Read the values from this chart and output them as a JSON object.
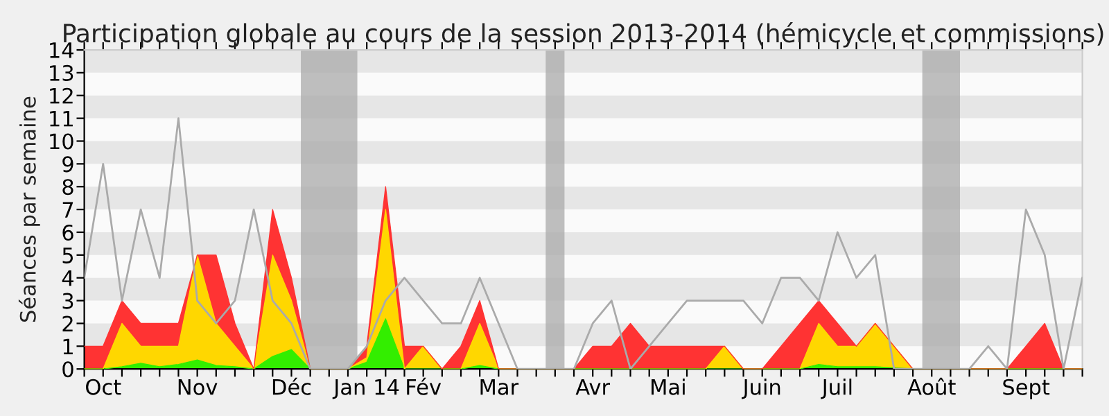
{
  "chart_data": {
    "type": "area",
    "stacked": true,
    "title": "Participation globale au cours de la session 2013-2014 (hémicycle et commissions)",
    "ylabel": "Séances par semaine",
    "x": [
      "2013-09-30",
      "2013-10-07",
      "2013-10-14",
      "2013-10-21",
      "2013-10-28",
      "2013-11-04",
      "2013-11-11",
      "2013-11-18",
      "2013-11-25",
      "2013-12-02",
      "2013-12-09",
      "2013-12-16",
      "2013-12-23",
      "2013-12-30",
      "2014-01-06",
      "2014-01-13",
      "2014-01-20",
      "2014-01-27",
      "2014-02-03",
      "2014-02-10",
      "2014-02-17",
      "2014-02-24",
      "2014-03-03",
      "2014-03-10",
      "2014-03-17",
      "2014-03-24",
      "2014-03-31",
      "2014-04-07",
      "2014-04-14",
      "2014-04-21",
      "2014-04-28",
      "2014-05-05",
      "2014-05-12",
      "2014-05-19",
      "2014-05-26",
      "2014-06-02",
      "2014-06-09",
      "2014-06-16",
      "2014-06-23",
      "2014-06-30",
      "2014-07-07",
      "2014-07-14",
      "2014-07-21",
      "2014-07-28",
      "2014-08-04",
      "2014-08-11",
      "2014-08-18",
      "2014-08-25",
      "2014-09-01",
      "2014-09-08",
      "2014-09-15",
      "2014-09-22",
      "2014-09-29",
      "2014-10-06"
    ],
    "series": [
      {
        "color": "#33ee00",
        "values": [
          0,
          0,
          0.1,
          0.25,
          0.1,
          0.2,
          0.4,
          0.15,
          0.1,
          0,
          0.55,
          0.85,
          0,
          0,
          0,
          0.3,
          2.2,
          0,
          0,
          0,
          0,
          0.15,
          0,
          0,
          0,
          0,
          0,
          0,
          0,
          0,
          0,
          0,
          0,
          0,
          0,
          0,
          0,
          0,
          0,
          0.2,
          0.1,
          0.1,
          0.1,
          0.05,
          0,
          0,
          0,
          0,
          0,
          0,
          0,
          0,
          0,
          0
        ]
      },
      {
        "color": "#ffd700",
        "values": [
          0,
          0,
          1.9,
          0.75,
          0.9,
          0.8,
          4.6,
          1.85,
          0.9,
          0,
          4.45,
          2.15,
          0,
          0,
          0,
          0.2,
          4.8,
          0,
          1,
          0,
          0,
          1.85,
          0,
          0,
          0,
          0,
          0,
          0,
          0,
          0,
          0,
          0,
          0,
          0,
          1,
          0,
          0,
          0,
          0,
          1.8,
          0.9,
          0.9,
          1.9,
          0.95,
          0,
          0,
          0,
          0,
          0,
          0,
          0,
          0,
          0,
          0
        ]
      },
      {
        "color": "#ff3333",
        "values": [
          1,
          1,
          1,
          1,
          1,
          1,
          0,
          3,
          1,
          0,
          2,
          1,
          0,
          0,
          0,
          0.5,
          1,
          1,
          0,
          0,
          1,
          1,
          0,
          0,
          0,
          0,
          0,
          1,
          1,
          2,
          1,
          1,
          1,
          1,
          0,
          0,
          0,
          1,
          2,
          1,
          1,
          0,
          0,
          0,
          0,
          0,
          0,
          0,
          0,
          0,
          1,
          2,
          0,
          0
        ]
      },
      {
        "type": "line",
        "color": "#aaaaaa",
        "values": [
          4,
          9,
          3,
          7,
          4,
          11,
          3,
          2,
          3,
          7,
          3,
          2,
          0,
          0,
          0,
          1,
          3,
          4,
          3,
          2,
          2,
          4,
          2,
          0,
          0,
          0,
          0,
          2,
          3,
          0,
          1,
          2,
          3,
          3,
          3,
          3,
          2,
          4,
          4,
          3,
          6,
          4,
          5,
          0,
          0,
          0,
          0,
          0,
          1,
          0,
          7,
          5,
          0,
          4
        ]
      }
    ],
    "xlim": [
      "2013-09-30",
      "2014-10-06"
    ],
    "xticks": [
      {
        "value": "2013-09-30",
        "label": null
      },
      {
        "value": "2013-10-07",
        "label": "Oct"
      },
      {
        "value": "2013-10-14",
        "label": null
      },
      {
        "value": "2013-10-21",
        "label": null
      },
      {
        "value": "2013-10-28",
        "label": null
      },
      {
        "value": "2013-11-04",
        "label": null
      },
      {
        "value": "2013-11-11",
        "label": "Nov"
      },
      {
        "value": "2013-11-18",
        "label": null
      },
      {
        "value": "2013-11-25",
        "label": null
      },
      {
        "value": "2013-12-02",
        "label": null
      },
      {
        "value": "2013-12-09",
        "label": null
      },
      {
        "value": "2013-12-16",
        "label": "Déc"
      },
      {
        "value": "2013-12-23",
        "label": null
      },
      {
        "value": "2013-12-30",
        "label": null
      },
      {
        "value": "2014-01-06",
        "label": null
      },
      {
        "value": "2014-01-13",
        "label": "Jan 14"
      },
      {
        "value": "2014-01-20",
        "label": null
      },
      {
        "value": "2014-01-27",
        "label": null
      },
      {
        "value": "2014-02-03",
        "label": "Fév"
      },
      {
        "value": "2014-02-10",
        "label": null
      },
      {
        "value": "2014-02-17",
        "label": null
      },
      {
        "value": "2014-02-24",
        "label": null
      },
      {
        "value": "2014-03-03",
        "label": "Mar"
      },
      {
        "value": "2014-03-10",
        "label": null
      },
      {
        "value": "2014-03-17",
        "label": null
      },
      {
        "value": "2014-03-24",
        "label": null
      },
      {
        "value": "2014-03-31",
        "label": null
      },
      {
        "value": "2014-04-07",
        "label": "Avr"
      },
      {
        "value": "2014-04-14",
        "label": null
      },
      {
        "value": "2014-04-21",
        "label": null
      },
      {
        "value": "2014-04-28",
        "label": null
      },
      {
        "value": "2014-05-05",
        "label": "Mai"
      },
      {
        "value": "2014-05-12",
        "label": null
      },
      {
        "value": "2014-05-19",
        "label": null
      },
      {
        "value": "2014-05-26",
        "label": null
      },
      {
        "value": "2014-06-02",
        "label": null
      },
      {
        "value": "2014-06-09",
        "label": "Juin"
      },
      {
        "value": "2014-06-16",
        "label": null
      },
      {
        "value": "2014-06-23",
        "label": null
      },
      {
        "value": "2014-06-30",
        "label": null
      },
      {
        "value": "2014-07-07",
        "label": "Juil"
      },
      {
        "value": "2014-07-14",
        "label": null
      },
      {
        "value": "2014-07-21",
        "label": null
      },
      {
        "value": "2014-07-28",
        "label": null
      },
      {
        "value": "2014-08-04",
        "label": null
      },
      {
        "value": "2014-08-11",
        "label": "Août"
      },
      {
        "value": "2014-08-18",
        "label": null
      },
      {
        "value": "2014-08-25",
        "label": null
      },
      {
        "value": "2014-09-01",
        "label": null
      },
      {
        "value": "2014-09-08",
        "label": null
      },
      {
        "value": "2014-09-15",
        "label": "Sept"
      },
      {
        "value": "2014-09-22",
        "label": null
      },
      {
        "value": "2014-09-29",
        "label": null
      },
      {
        "value": "2014-10-06",
        "label": null
      }
    ],
    "ylim": [
      0,
      14
    ],
    "yticks": [
      0,
      1,
      2,
      3,
      4,
      5,
      6,
      7,
      8,
      9,
      10,
      11,
      12,
      13,
      14
    ],
    "bands": [
      {
        "axis": "y",
        "from": 1,
        "to": 2,
        "color": "#e6e6e6"
      },
      {
        "axis": "y",
        "from": 3,
        "to": 4,
        "color": "#e6e6e6"
      },
      {
        "axis": "y",
        "from": 5,
        "to": 6,
        "color": "#e6e6e6"
      },
      {
        "axis": "y",
        "from": 7,
        "to": 8,
        "color": "#e6e6e6"
      },
      {
        "axis": "y",
        "from": 9,
        "to": 10,
        "color": "#e6e6e6"
      },
      {
        "axis": "y",
        "from": 11,
        "to": 12,
        "color": "#e6e6e6"
      },
      {
        "axis": "y",
        "from": 13,
        "to": 14,
        "color": "#e6e6e6"
      },
      {
        "axis": "x",
        "from": "2013-12-19T12:00",
        "to": "2014-01-09T12:00",
        "color": "#aaaaaa"
      },
      {
        "axis": "x",
        "from": "2014-03-20T12:00",
        "to": "2014-03-27T12:00",
        "color": "#aaaaaa"
      },
      {
        "axis": "x",
        "from": "2014-08-07T12:00",
        "to": "2014-08-21T12:00",
        "color": "#aaaaaa"
      }
    ]
  }
}
